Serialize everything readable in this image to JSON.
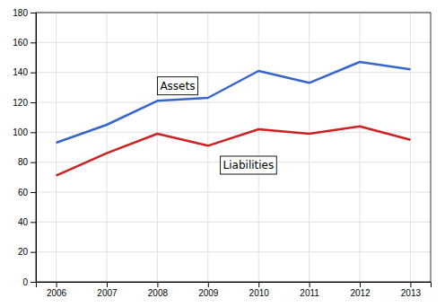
{
  "chart_data": {
    "type": "line",
    "x": [
      2006,
      2007,
      2008,
      2009,
      2010,
      2011,
      2012,
      2013
    ],
    "series": [
      {
        "color": "#3666CC",
        "values": [
          93,
          105,
          121,
          123,
          141,
          133,
          147,
          142
        ]
      },
      {
        "color": "#CC2222",
        "values": [
          71,
          86,
          99,
          91,
          102,
          99,
          104,
          95
        ]
      }
    ],
    "xlim": [
      2005.6,
      2013.4
    ],
    "xticks": [
      2006,
      2007,
      2008,
      2009,
      2010,
      2011,
      2012,
      2013
    ],
    "ylim": [
      0,
      180
    ],
    "yticks": [
      0,
      20,
      40,
      60,
      80,
      100,
      120,
      140,
      160,
      180
    ],
    "grid": true,
    "annotations": [
      {
        "text": "Assets",
        "x": 2008.4,
        "y": 131
      },
      {
        "text": "Liabilities",
        "x": 2009.8,
        "y": 78
      }
    ]
  }
}
